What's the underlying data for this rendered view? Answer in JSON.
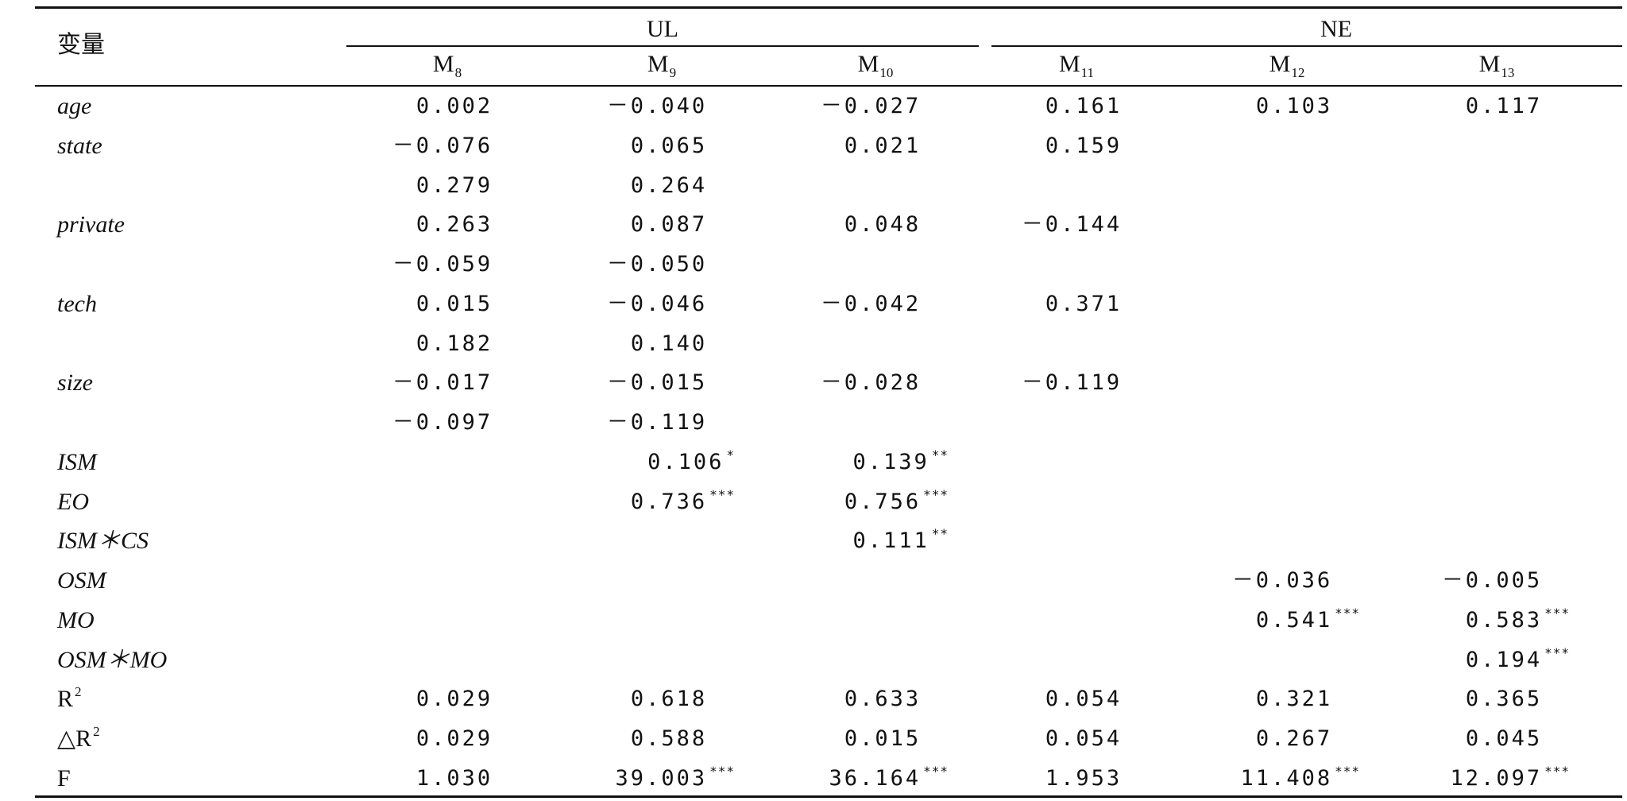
{
  "table": {
    "header": {
      "variable_label": "变量",
      "groups": [
        "UL",
        "NE"
      ],
      "models": [
        {
          "base": "M",
          "sub": "8"
        },
        {
          "base": "M",
          "sub": "9"
        },
        {
          "base": "M",
          "sub": "10"
        },
        {
          "base": "M",
          "sub": "11"
        },
        {
          "base": "M",
          "sub": "12"
        },
        {
          "base": "M",
          "sub": "13"
        }
      ]
    },
    "rows": [
      {
        "label": "age",
        "italic": true,
        "cells": [
          {
            "v": "0.002"
          },
          {
            "v": "－0.040"
          },
          {
            "v": "－0.027"
          },
          {
            "v": "0.161"
          },
          {
            "v": "0.103"
          },
          {
            "v": "0.117"
          }
        ]
      },
      {
        "label": "state",
        "italic": true,
        "cells": [
          {
            "v": "－0.076"
          },
          {
            "v": "0.065"
          },
          {
            "v": "0.021"
          },
          {
            "v": "0.159"
          },
          null,
          null
        ]
      },
      {
        "label": "",
        "italic": true,
        "cells": [
          {
            "v": "0.279"
          },
          {
            "v": "0.264"
          },
          null,
          null,
          null,
          null
        ]
      },
      {
        "label": "private",
        "italic": true,
        "cells": [
          {
            "v": "0.263"
          },
          {
            "v": "0.087"
          },
          {
            "v": "0.048"
          },
          {
            "v": "－0.144"
          },
          null,
          null
        ]
      },
      {
        "label": "",
        "italic": true,
        "cells": [
          {
            "v": "－0.059"
          },
          {
            "v": "－0.050"
          },
          null,
          null,
          null,
          null
        ]
      },
      {
        "label": "tech",
        "italic": true,
        "cells": [
          {
            "v": "0.015"
          },
          {
            "v": "－0.046"
          },
          {
            "v": "－0.042"
          },
          {
            "v": "0.371"
          },
          null,
          null
        ]
      },
      {
        "label": "",
        "italic": true,
        "cells": [
          {
            "v": "0.182"
          },
          {
            "v": "0.140"
          },
          null,
          null,
          null,
          null
        ]
      },
      {
        "label": "size",
        "italic": true,
        "cells": [
          {
            "v": "－0.017"
          },
          {
            "v": "－0.015"
          },
          {
            "v": "－0.028"
          },
          {
            "v": "－0.119"
          },
          null,
          null
        ]
      },
      {
        "label": "",
        "italic": true,
        "cells": [
          {
            "v": "－0.097"
          },
          {
            "v": "－0.119"
          },
          null,
          null,
          null,
          null
        ]
      },
      {
        "label": "ISM",
        "italic": true,
        "cells": [
          null,
          {
            "v": "0.106",
            "s": "*"
          },
          {
            "v": "0.139",
            "s": "**"
          },
          null,
          null,
          null
        ]
      },
      {
        "label": "EO",
        "italic": true,
        "cells": [
          null,
          {
            "v": "0.736",
            "s": "***"
          },
          {
            "v": "0.756",
            "s": "***"
          },
          null,
          null,
          null
        ]
      },
      {
        "label": "ISM＊CS",
        "italic": true,
        "cells": [
          null,
          null,
          {
            "v": "0.111",
            "s": "**"
          },
          null,
          null,
          null
        ]
      },
      {
        "label": "OSM",
        "italic": true,
        "cells": [
          null,
          null,
          null,
          null,
          {
            "v": "－0.036"
          },
          {
            "v": "－0.005"
          }
        ]
      },
      {
        "label": "MO",
        "italic": true,
        "cells": [
          null,
          null,
          null,
          null,
          {
            "v": "0.541",
            "s": "***"
          },
          {
            "v": "0.583",
            "s": "***"
          }
        ]
      },
      {
        "label": "OSM＊MO",
        "italic": true,
        "cells": [
          null,
          null,
          null,
          null,
          null,
          {
            "v": "0.194",
            "s": "***"
          }
        ]
      },
      {
        "label": "R",
        "label_sup": "2",
        "italic": false,
        "cells": [
          {
            "v": "0.029"
          },
          {
            "v": "0.618"
          },
          {
            "v": "0.633"
          },
          {
            "v": "0.054"
          },
          {
            "v": "0.321"
          },
          {
            "v": "0.365"
          }
        ]
      },
      {
        "label": "△R",
        "label_sup": "2",
        "italic": false,
        "cells": [
          {
            "v": "0.029"
          },
          {
            "v": "0.588"
          },
          {
            "v": "0.015"
          },
          {
            "v": "0.054"
          },
          {
            "v": "0.267"
          },
          {
            "v": "0.045"
          }
        ]
      },
      {
        "label": "F",
        "italic": false,
        "cells": [
          {
            "v": "1.030"
          },
          {
            "v": "39.003",
            "s": "***"
          },
          {
            "v": "36.164",
            "s": "***"
          },
          {
            "v": "1.953"
          },
          {
            "v": "11.408",
            "s": "***"
          },
          {
            "v": "12.097",
            "s": "***"
          }
        ]
      }
    ]
  }
}
